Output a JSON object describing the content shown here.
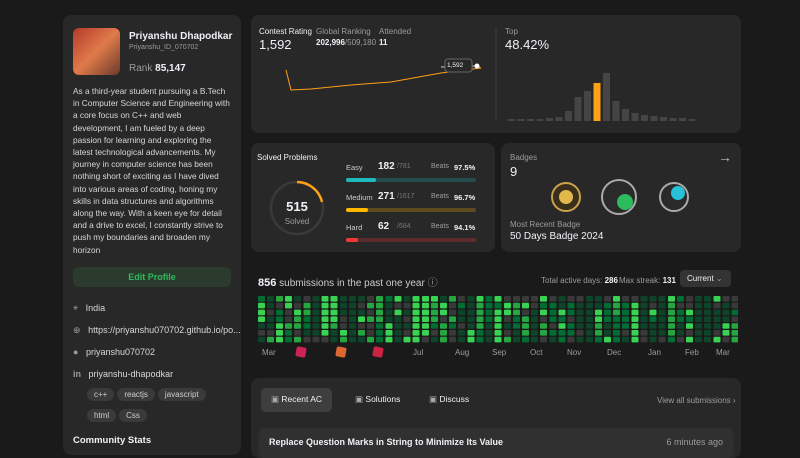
{
  "profile": {
    "name": "Priyanshu Dhapodkar",
    "username": "Priyanshu_ID_070702",
    "rank_label": "Rank",
    "rank": "85,147",
    "bio": "As a third-year student pursuing a B.Tech in Computer Science and Engineering with a core focus on C++ and web development, I am fueled by a deep passion for learning and exploring the latest technological advancements. My journey in computer science has been nothing short of exciting as I have dived into various areas of coding, honing my skills in data structures and algorithms along the way. With a keen eye for detail and a drive to excel, I constantly strive to push my boundaries and broaden my horizon",
    "edit": "Edit Profile",
    "location": "India",
    "website": "https://priyanshu070702.github.io/po...",
    "github": "priyanshu070702",
    "linkedin": "priyanshu-dhapodkar",
    "skills": [
      "c++",
      "reactjs",
      "javascript",
      "html",
      "Css"
    ],
    "community": "Community Stats"
  },
  "contest": {
    "label": "Contest Rating",
    "rating": "1,592",
    "global_label": "Global Ranking",
    "global_rank": "202,996",
    "global_total": "/509,180",
    "attended_label": "Attended",
    "attended": "11",
    "point_label": "1,592",
    "top_label": "Top",
    "top": "48.42%"
  },
  "solved": {
    "title": "Solved Problems",
    "center": "515",
    "center_label": "Solved",
    "difficulties": [
      {
        "name": "Easy",
        "solved": 182,
        "total": {
          "value": 781,
          "label": "/781"
        },
        "beats_label": "Beats",
        "beats": "97.5%",
        "color": "#1cbaba"
      },
      {
        "name": "Medium",
        "solved": 271,
        "total": {
          "value": 1617,
          "label": "/1617"
        },
        "beats_label": "Beats",
        "beats": "96.7%",
        "color": "#ffb700"
      },
      {
        "name": "Hard",
        "solved": 62,
        "total": {
          "value": 684,
          "label": "/684"
        },
        "beats_label": "Beats",
        "beats": "94.1%",
        "color": "#f63737"
      }
    ]
  },
  "badges": {
    "title": "Badges",
    "count": "9",
    "recent_label": "Most Recent Badge",
    "recent": "50 Days Badge 2024"
  },
  "submissions": {
    "count": "856",
    "text": "submissions in the past one year",
    "active_label": "Total active days:",
    "active": "286",
    "streak_label": "Max streak:",
    "streak": "131",
    "select": "Current",
    "months": [
      "Mar",
      "Jul",
      "Aug",
      "Sep",
      "Oct",
      "Nov",
      "Dec",
      "Jan",
      "Feb",
      "Mar"
    ]
  },
  "tabs": {
    "items": [
      "Recent AC",
      "Solutions",
      "Discuss"
    ],
    "view_all": "View all submissions",
    "recent": [
      {
        "title": "Replace Question Marks in String to Minimize Its Value",
        "time": "6 minutes ago"
      }
    ]
  }
}
